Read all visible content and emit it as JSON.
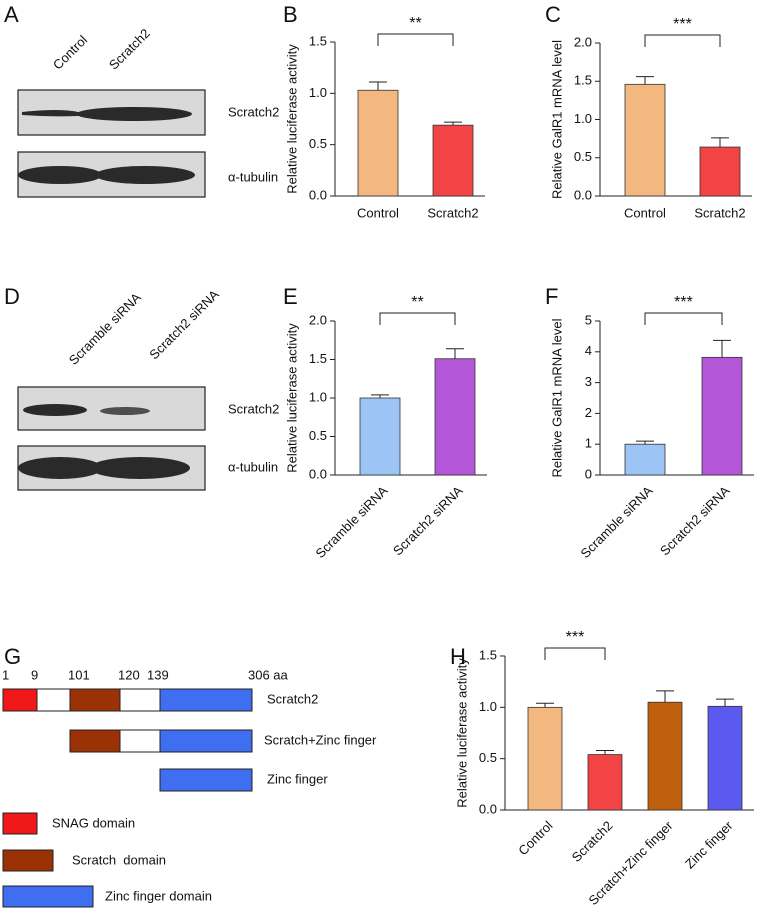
{
  "panel_labels": [
    "A",
    "B",
    "C",
    "D",
    "E",
    "F",
    "G",
    "H"
  ],
  "blot_a": {
    "lanes": [
      "Control",
      "Scratch2"
    ],
    "bands": [
      "Scratch2",
      "α-tubulin"
    ]
  },
  "blot_d": {
    "lanes": [
      "Scramble siRNA",
      "Scratch2 siRNA"
    ],
    "bands": [
      "Scratch2",
      "α-tubulin"
    ]
  },
  "diagram_g": {
    "positions": [
      "1",
      "9",
      "101",
      "120",
      "139",
      "306 aa"
    ],
    "constructs": [
      "Scratch2",
      "Scratch+Zinc finger",
      "Zinc finger"
    ],
    "legend": [
      "SNAG domain",
      "Scratch  domain",
      "Zinc finger domain"
    ]
  },
  "chart_data": [
    {
      "type": "bar",
      "ylabel": "Relative luciferase activity",
      "categories": [
        "Control",
        "Scratch2"
      ],
      "values": [
        1.03,
        0.69
      ],
      "errors": [
        0.08,
        0.03
      ],
      "colors": [
        "#f2b880",
        "#f24444"
      ],
      "ylim": [
        0,
        1.5
      ],
      "yticks": [
        {
          "value": 0,
          "label": "0.0"
        },
        0.5,
        {
          "value": 1,
          "label": "1.0"
        },
        1.5
      ],
      "significance": {
        "label": "**",
        "between": [
          "Control",
          "Scratch2"
        ]
      }
    },
    {
      "type": "bar",
      "ylabel": "Relative GalR1 mRNA level",
      "categories": [
        "Control",
        "Scratch2"
      ],
      "values": [
        1.46,
        0.64
      ],
      "errors": [
        0.1,
        0.12
      ],
      "colors": [
        "#f2b880",
        "#f24444"
      ],
      "ylim": [
        0,
        2
      ],
      "yticks": [
        {
          "value": 0,
          "label": "0.0"
        },
        0.5,
        {
          "value": 1,
          "label": "1.0"
        },
        1.5,
        {
          "value": 2,
          "label": "2.0"
        }
      ],
      "significance": {
        "label": "***",
        "between": [
          "Control",
          "Scratch2"
        ]
      }
    },
    {
      "type": "bar",
      "ylabel": "Relative luciferase activity",
      "categories": [
        "Scramble siRNA",
        "Scratch2 siRNA"
      ],
      "values": [
        1.0,
        1.51
      ],
      "errors": [
        0.04,
        0.13
      ],
      "colors": [
        "#9cc4f4",
        "#b456d8"
      ],
      "ylim": [
        0,
        2
      ],
      "yticks": [
        {
          "value": 0,
          "label": "0.0"
        },
        0.5,
        {
          "value": 1,
          "label": "1.0"
        },
        1.5,
        {
          "value": 2,
          "label": "2.0"
        }
      ],
      "significance": {
        "label": "**",
        "between": [
          "Scramble siRNA",
          "Scratch2 siRNA"
        ]
      }
    },
    {
      "type": "bar",
      "ylabel": "Relative GalR1 mRNA level",
      "categories": [
        "Scramble siRNA",
        "Scratch2 siRNA"
      ],
      "values": [
        1.0,
        3.82
      ],
      "errors": [
        0.1,
        0.55
      ],
      "colors": [
        "#9cc4f4",
        "#b456d8"
      ],
      "ylim": [
        0,
        5
      ],
      "yticks": [
        0,
        1,
        2,
        3,
        4,
        5
      ],
      "significance": {
        "label": "***",
        "between": [
          "Scramble siRNA",
          "Scratch2 siRNA"
        ]
      }
    },
    {
      "type": "bar",
      "ylabel": "Relative luciferase activity",
      "categories": [
        "Control",
        "Scratch2",
        "Scratch+Zinc finger",
        "Zinc finger"
      ],
      "values": [
        1.0,
        0.54,
        1.05,
        1.01
      ],
      "errors": [
        0.04,
        0.04,
        0.11,
        0.07
      ],
      "colors": [
        "#f2b880",
        "#f24444",
        "#c0600e",
        "#5a5af0"
      ],
      "ylim": [
        0,
        1.5
      ],
      "yticks": [
        {
          "value": 0,
          "label": "0.0"
        },
        0.5,
        {
          "value": 1,
          "label": "1.0"
        },
        1.5
      ],
      "significance": {
        "label": "***",
        "between": [
          "Control",
          "Scratch2"
        ]
      }
    }
  ]
}
